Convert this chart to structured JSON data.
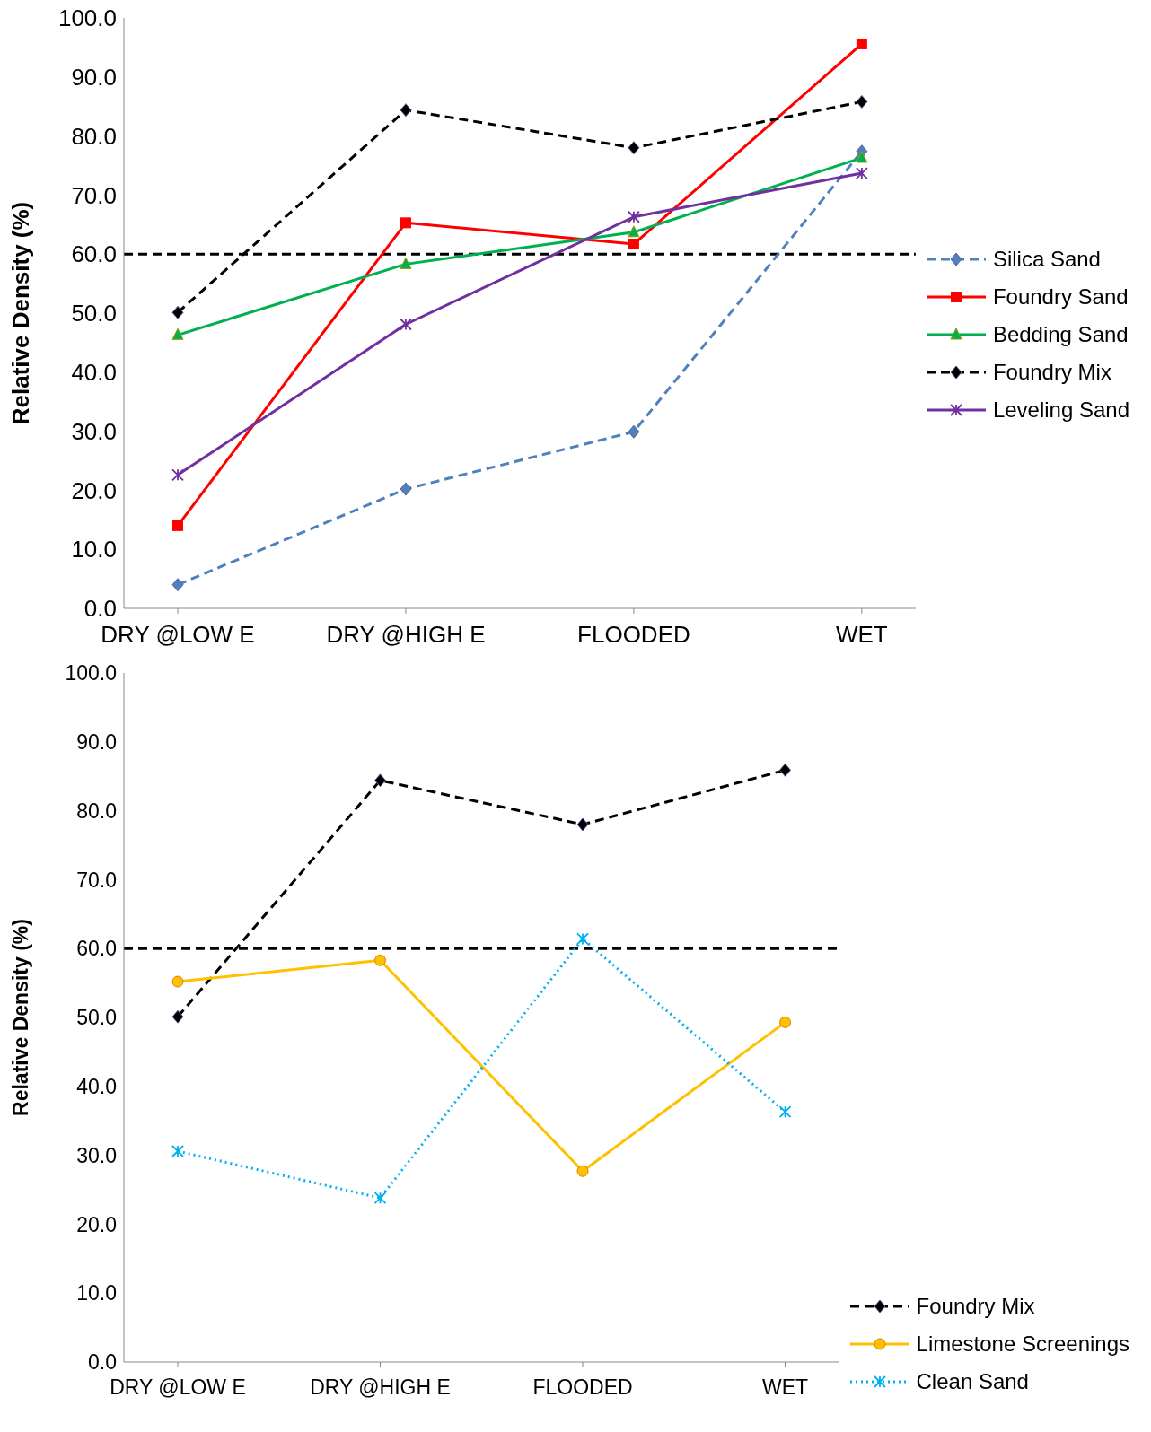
{
  "chart_data": [
    {
      "type": "line",
      "ylabel": "Relative Density (%)",
      "categories": [
        "DRY @LOW E",
        "DRY @HIGH E",
        "FLOODED",
        "WET"
      ],
      "ylim": [
        0,
        100
      ],
      "yticks": [
        {
          "value": 0,
          "label": "0.0"
        },
        {
          "value": 10,
          "label": "10.0"
        },
        {
          "value": 20,
          "label": "20.0"
        },
        {
          "value": 30,
          "label": "30.0"
        },
        {
          "value": 40,
          "label": "40.0"
        },
        {
          "value": 50,
          "label": "50.0"
        },
        {
          "value": 60,
          "label": "60.0"
        },
        {
          "value": 70,
          "label": "70.0"
        },
        {
          "value": 80,
          "label": "80.0"
        },
        {
          "value": 90,
          "label": "90.0"
        },
        {
          "value": 100,
          "label": "100.0"
        }
      ],
      "grid": false,
      "legend": "right",
      "ref_lines": [
        {
          "axis": "y",
          "value": 60,
          "color": "#000000",
          "line_style": "dashed"
        }
      ],
      "series": [
        {
          "name": "Silica Sand",
          "color": "#4f81bd",
          "marker": "diamond",
          "line_style": "dashed",
          "values": [
            4.0,
            20.2,
            29.9,
            77.4
          ]
        },
        {
          "name": "Foundry Sand",
          "color": "#ff0000",
          "marker": "square",
          "line_style": "solid",
          "values": [
            14.0,
            65.3,
            61.7,
            95.6
          ]
        },
        {
          "name": "Bedding Sand",
          "color": "#00b050",
          "marker": "triangle",
          "line_style": "solid",
          "values": [
            46.3,
            58.3,
            63.7,
            76.3
          ]
        },
        {
          "name": "Foundry Mix",
          "color": "#000000",
          "marker": "diamond",
          "line_style": "dashed",
          "values": [
            50.1,
            84.4,
            78.0,
            85.8
          ]
        },
        {
          "name": "Leveling Sand",
          "color": "#7030a0",
          "marker": "cross",
          "line_style": "solid",
          "values": [
            22.6,
            48.1,
            66.3,
            73.7
          ]
        }
      ]
    },
    {
      "type": "line",
      "ylabel": "Relative Density (%)",
      "categories": [
        "DRY @LOW E",
        "DRY @HIGH E",
        "FLOODED",
        "WET"
      ],
      "ylim": [
        0,
        100
      ],
      "yticks": [
        {
          "value": 0,
          "label": "0.0"
        },
        {
          "value": 10,
          "label": "10.0"
        },
        {
          "value": 20,
          "label": "20.0"
        },
        {
          "value": 30,
          "label": "30.0"
        },
        {
          "value": 40,
          "label": "40.0"
        },
        {
          "value": 50,
          "label": "50.0"
        },
        {
          "value": 60,
          "label": "60.0"
        },
        {
          "value": 70,
          "label": "70.0"
        },
        {
          "value": 80,
          "label": "80.0"
        },
        {
          "value": 90,
          "label": "90.0"
        },
        {
          "value": 100,
          "label": "100.0"
        }
      ],
      "grid": false,
      "legend": "bottom right",
      "ref_lines": [
        {
          "axis": "y",
          "value": 60,
          "color": "#000000",
          "line_style": "dashed"
        }
      ],
      "series": [
        {
          "name": "Foundry Mix",
          "color": "#000000",
          "marker": "diamond",
          "line_style": "dashed",
          "values": [
            50.1,
            84.4,
            78.0,
            85.9
          ]
        },
        {
          "name": "Limestone Screenings",
          "color": "#ffc000",
          "marker": "circle",
          "line_style": "solid",
          "values": [
            55.2,
            58.3,
            27.7,
            49.3
          ]
        },
        {
          "name": "Clean Sand",
          "color": "#00b0f0",
          "marker": "cross",
          "line_style": "dotted",
          "values": [
            30.6,
            23.8,
            61.4,
            36.3
          ]
        }
      ]
    }
  ]
}
